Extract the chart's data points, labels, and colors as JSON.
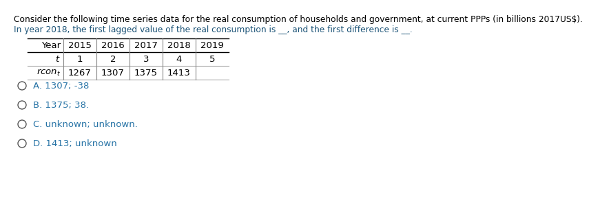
{
  "title_line1": "Consider the following time series data for the real consumption of households and government, at current PPPs (in billions 2017US$).",
  "title_line2": "In year 2018, the first lagged value of the real consumption is __, and the first difference is __.",
  "col_headers": [
    "Year",
    "2015",
    "2016",
    "2017",
    "2018",
    "2019"
  ],
  "row_t": [
    "t",
    "1",
    "2",
    "3",
    "4",
    "5"
  ],
  "row_rcon": [
    "rcon_t",
    "1267",
    "1307",
    "1375",
    "1413",
    ""
  ],
  "options": [
    "A. 1307; -38",
    "B. 1375; 38.",
    "C. unknown; unknown.",
    "D. 1413; unknown"
  ],
  "title1_color": "#000000",
  "title2_color": "#1a5276",
  "option_color": "#2874a6",
  "table_color": "#000000",
  "bg_color": "#ffffff",
  "font_size_title": 8.8,
  "font_size_table": 9.5,
  "font_size_options": 9.5
}
